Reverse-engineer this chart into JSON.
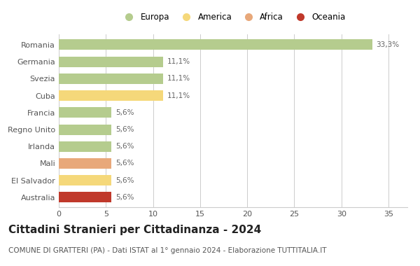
{
  "countries": [
    "Romania",
    "Germania",
    "Svezia",
    "Cuba",
    "Francia",
    "Regno Unito",
    "Irlanda",
    "Mali",
    "El Salvador",
    "Australia"
  ],
  "values": [
    33.3,
    11.1,
    11.1,
    11.1,
    5.6,
    5.6,
    5.6,
    5.6,
    5.6,
    5.6
  ],
  "labels": [
    "33,3%",
    "11,1%",
    "11,1%",
    "11,1%",
    "5,6%",
    "5,6%",
    "5,6%",
    "5,6%",
    "5,6%",
    "5,6%"
  ],
  "colors": [
    "#b5cc8e",
    "#b5cc8e",
    "#b5cc8e",
    "#f5d87a",
    "#b5cc8e",
    "#b5cc8e",
    "#b5cc8e",
    "#e8a87a",
    "#f5d87a",
    "#c0392b"
  ],
  "legend_labels": [
    "Europa",
    "America",
    "Africa",
    "Oceania"
  ],
  "legend_colors": [
    "#b5cc8e",
    "#f5d87a",
    "#e8a87a",
    "#c0392b"
  ],
  "xlim": [
    0,
    37
  ],
  "xticks": [
    0,
    5,
    10,
    15,
    20,
    25,
    30,
    35
  ],
  "title": "Cittadini Stranieri per Cittadinanza - 2024",
  "subtitle": "COMUNE DI GRATTERI (PA) - Dati ISTAT al 1° gennaio 2024 - Elaborazione TUTTITALIA.IT",
  "bg_color": "#ffffff",
  "bar_height": 0.62,
  "grid_color": "#cccccc",
  "label_fontsize": 7.5,
  "ytick_fontsize": 8,
  "xtick_fontsize": 8,
  "title_fontsize": 11,
  "subtitle_fontsize": 7.5
}
